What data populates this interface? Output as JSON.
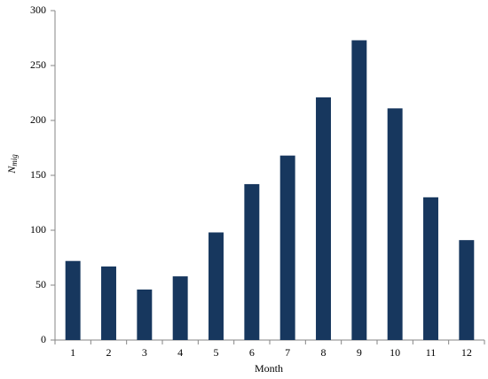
{
  "chart_data": {
    "type": "bar",
    "x_label": "Month",
    "y_label": "N",
    "y_label_subscript": "mig",
    "categories": [
      "1",
      "2",
      "3",
      "4",
      "5",
      "6",
      "7",
      "8",
      "9",
      "10",
      "11",
      "12"
    ],
    "values": [
      72,
      67,
      46,
      58,
      98,
      142,
      168,
      221,
      273,
      211,
      130,
      91
    ],
    "color": "#17375e",
    "ylim": [
      0,
      300
    ],
    "yticks": [
      0,
      50,
      100,
      150,
      200,
      250,
      300
    ],
    "grid": false
  }
}
